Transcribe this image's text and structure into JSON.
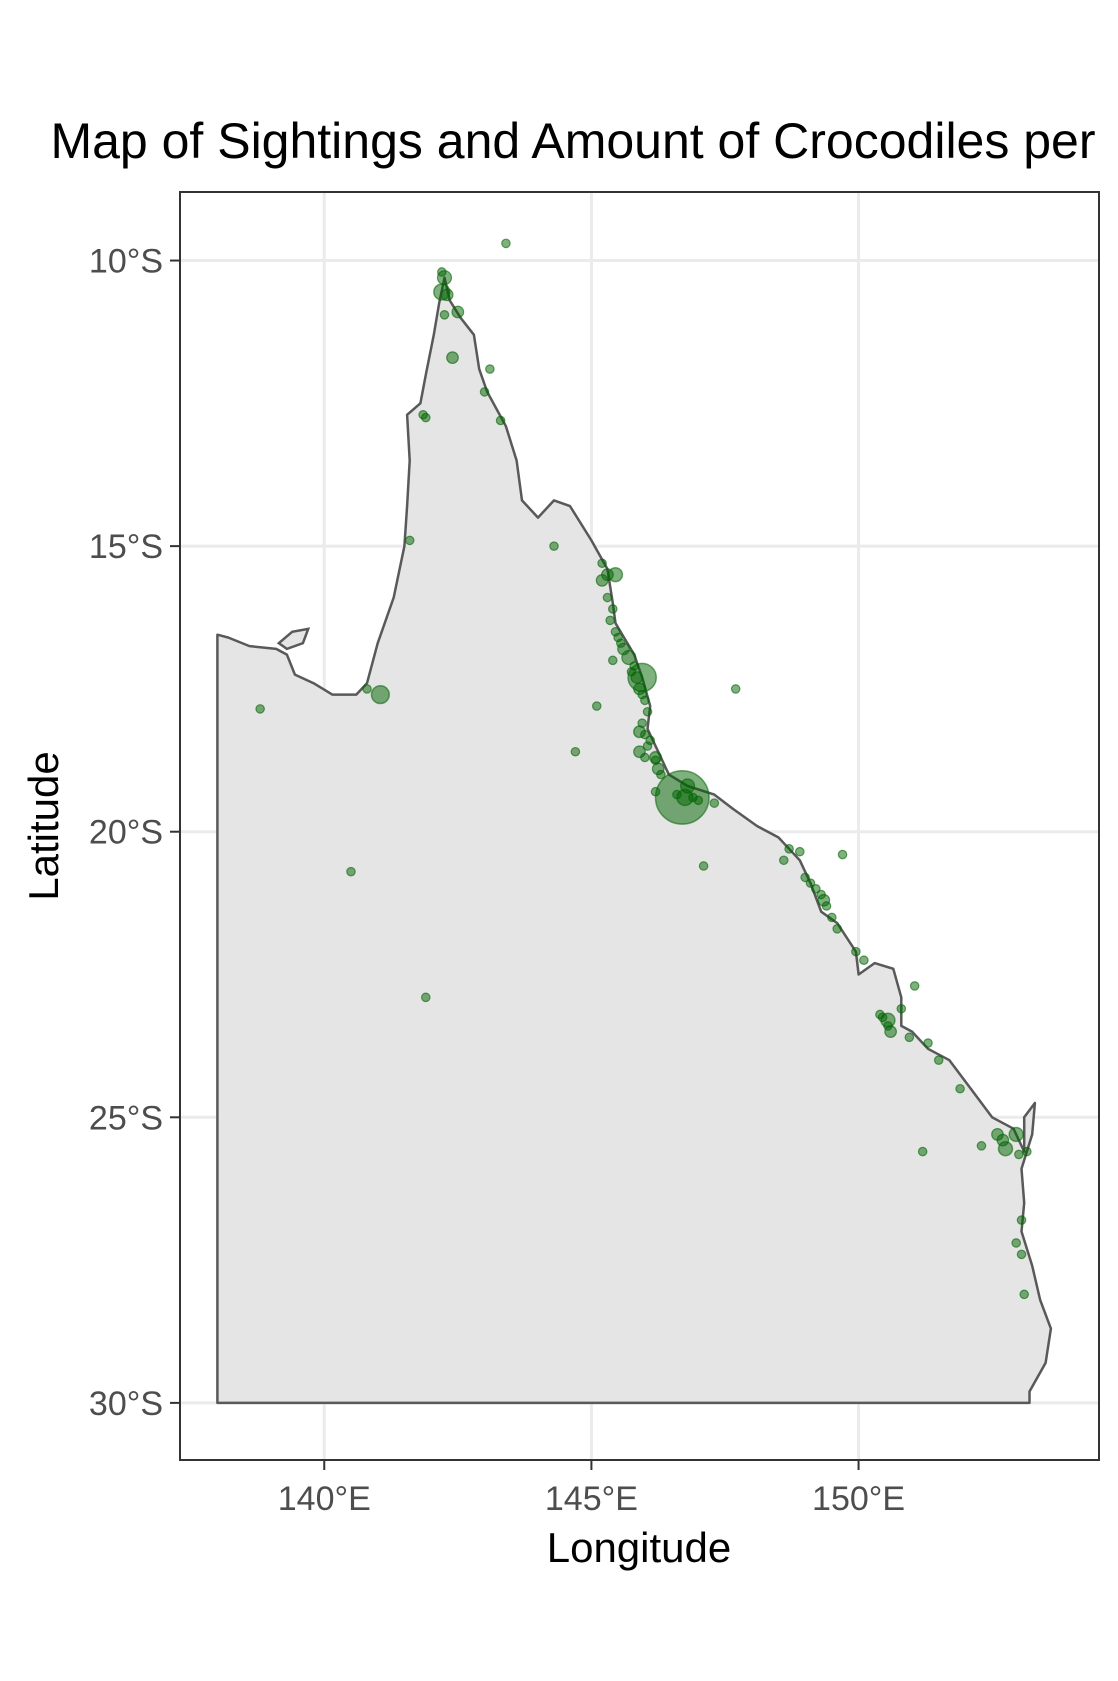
{
  "chart_data": {
    "type": "scatter",
    "title": "Map of Sightings and Amount of Crocodiles per",
    "xlabel": "Longitude",
    "ylabel": "Latitude",
    "xlim": [
      137.3,
      154.5
    ],
    "ylim": [
      -31.0,
      -8.8
    ],
    "x_ticks": [
      {
        "value": 140,
        "label": "140°E"
      },
      {
        "value": 145,
        "label": "145°E"
      },
      {
        "value": 150,
        "label": "150°E"
      }
    ],
    "y_ticks": [
      {
        "value": -10,
        "label": "10°S"
      },
      {
        "value": -15,
        "label": "15°S"
      },
      {
        "value": -20,
        "label": "20°S"
      },
      {
        "value": -25,
        "label": "25°S"
      },
      {
        "value": -30,
        "label": "30°S"
      }
    ],
    "grid": true,
    "legend": "none",
    "colors": {
      "land_fill": "#e5e5e5",
      "coastline": "#595959",
      "points": "#006400",
      "grid": "#ebebeb",
      "panel_border": "#333333",
      "tick_label": "#4d4d4d"
    },
    "coastline": [
      [
        138.0,
        -30.0
      ],
      [
        138.0,
        -16.55
      ],
      [
        138.2,
        -16.6
      ],
      [
        138.6,
        -16.75
      ],
      [
        139.1,
        -16.8
      ],
      [
        139.3,
        -16.9
      ],
      [
        139.45,
        -17.25
      ],
      [
        139.8,
        -17.4
      ],
      [
        140.15,
        -17.6
      ],
      [
        140.6,
        -17.6
      ],
      [
        140.8,
        -17.4
      ],
      [
        141.0,
        -16.7
      ],
      [
        141.3,
        -15.9
      ],
      [
        141.5,
        -15.0
      ],
      [
        141.55,
        -14.3
      ],
      [
        141.6,
        -13.5
      ],
      [
        141.55,
        -12.7
      ],
      [
        141.8,
        -12.5
      ],
      [
        141.9,
        -12.0
      ],
      [
        142.05,
        -11.3
      ],
      [
        142.15,
        -10.75
      ],
      [
        142.25,
        -10.3
      ],
      [
        142.35,
        -10.7
      ],
      [
        142.55,
        -11.0
      ],
      [
        142.8,
        -11.3
      ],
      [
        142.9,
        -11.9
      ],
      [
        143.05,
        -12.3
      ],
      [
        143.4,
        -12.9
      ],
      [
        143.6,
        -13.5
      ],
      [
        143.7,
        -14.2
      ],
      [
        144.0,
        -14.5
      ],
      [
        144.3,
        -14.2
      ],
      [
        144.6,
        -14.3
      ],
      [
        145.0,
        -14.9
      ],
      [
        145.3,
        -15.4
      ],
      [
        145.4,
        -16.0
      ],
      [
        145.45,
        -16.35
      ],
      [
        145.8,
        -16.9
      ],
      [
        145.95,
        -17.3
      ],
      [
        146.1,
        -17.8
      ],
      [
        146.05,
        -18.2
      ],
      [
        146.25,
        -18.6
      ],
      [
        146.45,
        -19.0
      ],
      [
        146.8,
        -19.2
      ],
      [
        147.3,
        -19.35
      ],
      [
        147.65,
        -19.6
      ],
      [
        148.1,
        -19.9
      ],
      [
        148.5,
        -20.1
      ],
      [
        148.7,
        -20.3
      ],
      [
        148.9,
        -20.5
      ],
      [
        149.1,
        -20.9
      ],
      [
        149.3,
        -21.4
      ],
      [
        149.6,
        -21.6
      ],
      [
        149.95,
        -22.1
      ],
      [
        150.0,
        -22.5
      ],
      [
        150.3,
        -22.3
      ],
      [
        150.65,
        -22.4
      ],
      [
        150.8,
        -22.9
      ],
      [
        150.8,
        -23.4
      ],
      [
        151.0,
        -23.5
      ],
      [
        151.3,
        -23.8
      ],
      [
        151.7,
        -24.0
      ],
      [
        152.1,
        -24.5
      ],
      [
        152.5,
        -25.0
      ],
      [
        152.9,
        -25.2
      ],
      [
        153.1,
        -25.6
      ],
      [
        153.1,
        -25.0
      ],
      [
        153.3,
        -24.75
      ],
      [
        153.25,
        -25.3
      ],
      [
        153.05,
        -25.9
      ],
      [
        153.1,
        -26.5
      ],
      [
        153.05,
        -27.0
      ],
      [
        153.25,
        -27.6
      ],
      [
        153.4,
        -28.2
      ],
      [
        153.6,
        -28.7
      ],
      [
        153.5,
        -29.3
      ],
      [
        153.2,
        -29.8
      ],
      [
        153.2,
        -30.0
      ],
      [
        138.0,
        -30.0
      ]
    ],
    "islands": [
      [
        [
          139.15,
          -16.7
        ],
        [
          139.4,
          -16.5
        ],
        [
          139.7,
          -16.45
        ],
        [
          139.6,
          -16.7
        ],
        [
          139.3,
          -16.8
        ],
        [
          139.15,
          -16.7
        ]
      ]
    ],
    "series": [
      {
        "x": [
          143.4,
          142.2,
          142.25,
          142.3,
          142.5,
          142.25,
          142.4,
          143.1,
          143.0,
          143.3,
          141.85,
          141.9,
          141.6,
          144.3,
          145.2,
          145.3,
          145.2,
          145.3,
          145.4,
          145.35,
          145.45,
          145.5,
          145.55,
          145.6,
          145.7,
          145.4,
          145.8,
          145.75,
          145.85,
          145.9,
          145.95,
          146.0,
          146.05,
          145.95,
          146.0,
          146.1,
          146.05,
          145.9,
          146.0,
          146.2,
          146.25,
          146.3,
          146.2,
          146.6,
          146.8,
          146.9,
          147.0,
          147.3,
          147.1,
          147.7,
          145.1,
          144.7,
          140.8,
          138.8,
          140.5,
          141.9,
          148.7,
          148.9,
          148.6,
          149.0,
          149.1,
          149.2,
          149.3,
          149.35,
          149.4,
          149.5,
          149.6,
          149.7,
          149.95,
          150.1,
          150.4,
          150.45,
          150.55,
          150.6,
          150.8,
          150.95,
          151.05,
          151.3,
          151.5,
          151.9,
          152.3,
          152.6,
          152.7,
          153.0,
          153.05,
          152.95,
          153.05,
          153.1,
          153.15,
          151.2
        ],
        "y": [
          -9.7,
          -10.2,
          -10.3,
          -10.6,
          -10.9,
          -10.95,
          -11.7,
          -11.9,
          -12.3,
          -12.8,
          -12.7,
          -12.75,
          -14.9,
          -15.0,
          -15.3,
          -15.5,
          -15.6,
          -15.9,
          -16.1,
          -16.3,
          -16.5,
          -16.6,
          -16.7,
          -16.8,
          -16.95,
          -17.0,
          -17.1,
          -17.2,
          -17.3,
          -17.5,
          -17.6,
          -17.7,
          -17.9,
          -18.1,
          -18.3,
          -18.4,
          -18.5,
          -18.6,
          -18.7,
          -18.75,
          -18.9,
          -19.0,
          -19.3,
          -19.35,
          -19.2,
          -19.4,
          -19.45,
          -19.5,
          -20.6,
          -17.5,
          -17.8,
          -18.6,
          -17.5,
          -17.85,
          -20.7,
          -22.9,
          -20.3,
          -20.35,
          -20.5,
          -20.8,
          -20.9,
          -21.0,
          -21.1,
          -21.2,
          -21.3,
          -21.5,
          -21.7,
          -20.4,
          -22.1,
          -22.25,
          -23.2,
          -23.25,
          -23.4,
          -23.5,
          -23.1,
          -23.6,
          -22.7,
          -23.7,
          -24.0,
          -24.5,
          -25.5,
          -25.3,
          -25.4,
          -25.65,
          -26.8,
          -27.2,
          -27.4,
          -28.1,
          -25.6,
          -25.6
        ],
        "size": [
          1,
          1,
          3,
          2,
          2,
          1,
          2,
          1,
          1,
          1,
          1,
          1,
          1,
          1,
          1,
          2,
          2,
          1,
          1,
          1,
          1,
          1,
          1,
          2,
          3,
          1,
          1,
          1,
          2,
          2,
          1,
          1,
          1,
          1,
          1,
          1,
          1,
          2,
          1,
          1,
          2,
          1,
          1,
          1,
          3,
          1,
          1,
          1,
          1,
          1,
          1,
          1,
          1,
          1,
          1,
          1,
          1,
          1,
          1,
          1,
          1,
          1,
          1,
          2,
          1,
          1,
          1,
          1,
          1,
          1,
          1,
          1,
          1,
          2,
          1,
          1,
          1,
          1,
          1,
          1,
          1,
          2,
          2,
          1,
          1,
          1,
          1,
          1,
          1,
          1
        ],
        "large_points": [
          {
            "x": 146.7,
            "y": -19.4,
            "size": 48
          },
          {
            "x": 145.95,
            "y": -17.3,
            "size": 13
          },
          {
            "x": 141.05,
            "y": -17.6,
            "size": 5
          },
          {
            "x": 142.2,
            "y": -10.55,
            "size": 4
          },
          {
            "x": 145.45,
            "y": -15.5,
            "size": 3
          },
          {
            "x": 146.75,
            "y": -19.4,
            "size": 4
          },
          {
            "x": 150.55,
            "y": -23.3,
            "size": 3
          },
          {
            "x": 152.75,
            "y": -25.55,
            "size": 3
          },
          {
            "x": 152.95,
            "y": -25.3,
            "size": 3
          },
          {
            "x": 145.9,
            "y": -18.25,
            "size": 2
          },
          {
            "x": 146.2,
            "y": -18.7,
            "size": 2
          }
        ]
      }
    ]
  }
}
